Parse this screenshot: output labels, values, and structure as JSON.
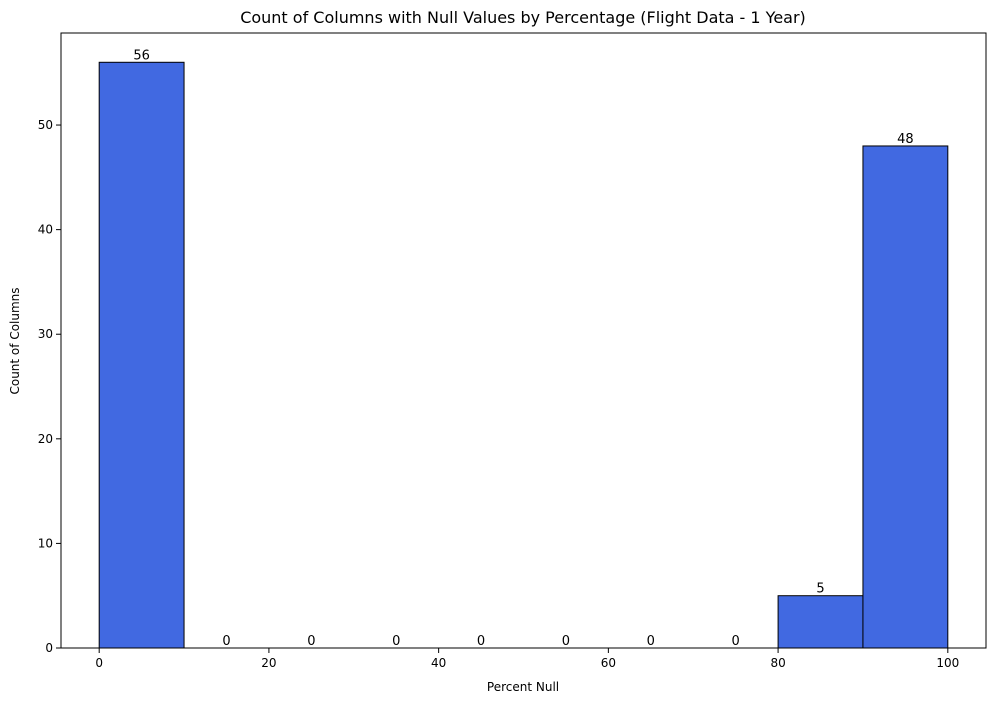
{
  "chart_data": {
    "type": "bar",
    "title": "Count of Columns with Null Values by Percentage (Flight Data - 1 Year)",
    "xlabel": "Percent Null",
    "ylabel": "Count of Columns",
    "bins": [
      {
        "start": 0,
        "end": 10,
        "value": 56,
        "label": "56"
      },
      {
        "start": 10,
        "end": 20,
        "value": 0,
        "label": "0"
      },
      {
        "start": 20,
        "end": 30,
        "value": 0,
        "label": "0"
      },
      {
        "start": 30,
        "end": 40,
        "value": 0,
        "label": "0"
      },
      {
        "start": 40,
        "end": 50,
        "value": 0,
        "label": "0"
      },
      {
        "start": 50,
        "end": 60,
        "value": 0,
        "label": "0"
      },
      {
        "start": 60,
        "end": 70,
        "value": 0,
        "label": "0"
      },
      {
        "start": 70,
        "end": 80,
        "value": 0,
        "label": "0"
      },
      {
        "start": 80,
        "end": 90,
        "value": 5,
        "label": "5"
      },
      {
        "start": 90,
        "end": 100,
        "value": 48,
        "label": "48"
      }
    ],
    "xlim": [
      -4.5,
      104.5
    ],
    "ylim": [
      0,
      58.8
    ],
    "x_ticks": [
      0,
      20,
      40,
      60,
      80,
      100
    ],
    "x_tick_labels": [
      "0",
      "20",
      "40",
      "60",
      "80",
      "100"
    ],
    "y_ticks": [
      0,
      10,
      20,
      30,
      40,
      50
    ],
    "y_tick_labels": [
      "0",
      "10",
      "20",
      "30",
      "40",
      "50"
    ],
    "grid": false,
    "legend": false,
    "colors": {
      "bar_fill": "#4169e1",
      "bar_edge": "#000000"
    }
  }
}
